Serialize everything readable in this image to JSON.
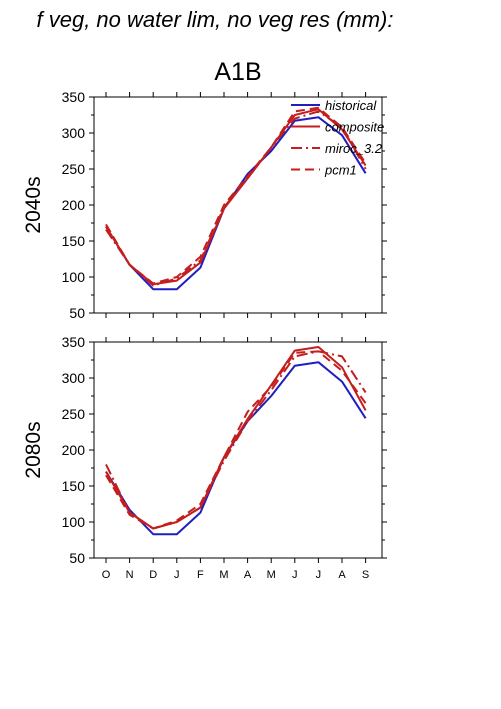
{
  "title": "f veg, no water lim, no veg res (mm):",
  "scenario": "A1B",
  "colors": {
    "historical": "#1f1fbf",
    "composite": "#c41e1e",
    "miroc_3.2": "#c41e1e",
    "pcm1": "#c41e1e"
  },
  "legend": [
    {
      "name": "historical",
      "dash": "solid"
    },
    {
      "name": "composite",
      "dash": "solid"
    },
    {
      "name": "miroc_3.2",
      "dash": "dashdot"
    },
    {
      "name": "pcm1",
      "dash": "dashed"
    }
  ],
  "chart_data": [
    {
      "type": "line",
      "row_label": "2040s",
      "categories": [
        "O",
        "N",
        "D",
        "J",
        "F",
        "M",
        "A",
        "M",
        "J",
        "J",
        "A",
        "S"
      ],
      "ylim": [
        50,
        350
      ],
      "yticks": [
        50,
        100,
        150,
        200,
        250,
        300,
        350
      ],
      "legend_position": "top-right",
      "series": [
        {
          "name": "historical",
          "values": [
            170,
            117,
            83,
            83,
            113,
            195,
            243,
            275,
            317,
            322,
            297,
            244
          ]
        },
        {
          "name": "composite",
          "values": [
            170,
            117,
            90,
            95,
            120,
            195,
            237,
            280,
            325,
            333,
            305,
            255
          ]
        },
        {
          "name": "miroc_3.2",
          "values": [
            166,
            117,
            88,
            98,
            123,
            197,
            237,
            280,
            320,
            330,
            308,
            250
          ]
        },
        {
          "name": "pcm1",
          "values": [
            173,
            117,
            91,
            100,
            128,
            200,
            240,
            280,
            330,
            335,
            308,
            258
          ]
        }
      ]
    },
    {
      "type": "line",
      "row_label": "2080s",
      "categories": [
        "O",
        "N",
        "D",
        "J",
        "F",
        "M",
        "A",
        "M",
        "J",
        "J",
        "A",
        "S"
      ],
      "ylim": [
        50,
        350
      ],
      "yticks": [
        50,
        100,
        150,
        200,
        250,
        300,
        350
      ],
      "series": [
        {
          "name": "historical",
          "values": [
            170,
            117,
            83,
            83,
            113,
            190,
            240,
            275,
            317,
            322,
            295,
            244
          ]
        },
        {
          "name": "composite",
          "values": [
            170,
            113,
            91,
            100,
            120,
            190,
            243,
            290,
            338,
            343,
            315,
            255
          ]
        },
        {
          "name": "miroc_3.2",
          "values": [
            180,
            113,
            91,
            100,
            120,
            185,
            240,
            283,
            330,
            337,
            330,
            280
          ]
        },
        {
          "name": "pcm1",
          "values": [
            165,
            110,
            91,
            102,
            125,
            190,
            253,
            288,
            335,
            337,
            310,
            265
          ]
        }
      ]
    }
  ]
}
